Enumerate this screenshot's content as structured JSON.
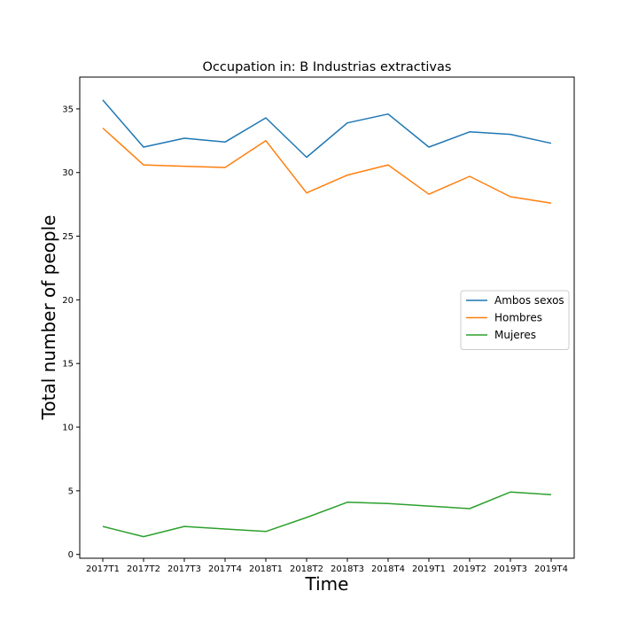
{
  "chart_data": {
    "type": "line",
    "title": "Occupation in: B Industrias extractivas",
    "xlabel": "Time",
    "ylabel": "Total number of people",
    "categories": [
      "2017T1",
      "2017T2",
      "2017T3",
      "2017T4",
      "2018T1",
      "2018T2",
      "2018T3",
      "2018T4",
      "2019T1",
      "2019T2",
      "2019T3",
      "2019T4"
    ],
    "ylim": [
      -0.3,
      37.5
    ],
    "yticks": [
      0,
      5,
      10,
      15,
      20,
      25,
      30,
      35
    ],
    "grid": false,
    "legend_position": "center-right",
    "series": [
      {
        "name": "Ambos sexos",
        "color": "#1f77b4",
        "values": [
          35.7,
          32.0,
          32.7,
          32.4,
          34.3,
          31.2,
          33.9,
          34.6,
          32.0,
          33.2,
          33.0,
          32.3
        ]
      },
      {
        "name": "Hombres",
        "color": "#ff7f0e",
        "values": [
          33.5,
          30.6,
          30.5,
          30.4,
          32.5,
          28.4,
          29.8,
          30.6,
          28.3,
          29.7,
          28.1,
          27.6
        ]
      },
      {
        "name": "Mujeres",
        "color": "#2ca02c",
        "values": [
          2.2,
          1.4,
          2.2,
          2.0,
          1.8,
          2.9,
          4.1,
          4.0,
          3.8,
          3.6,
          4.9,
          4.7
        ]
      }
    ]
  }
}
